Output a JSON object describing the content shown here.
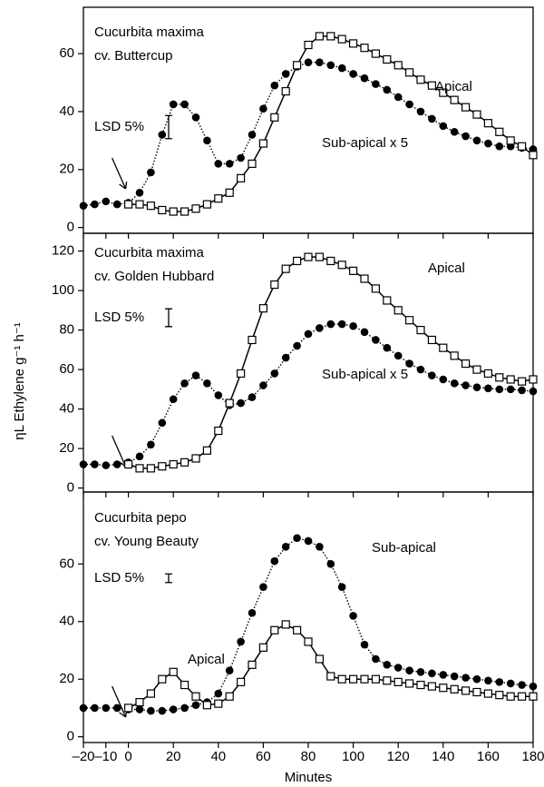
{
  "chart_data": [
    {
      "type": "line",
      "title_lines": [
        "Cucurbita maxima",
        "cv. Buttercup"
      ],
      "lsd_label": "LSD 5%",
      "lsd_value": 8,
      "xlim": [
        -20,
        180
      ],
      "ylim": [
        -2,
        76
      ],
      "yticks": [
        0,
        20,
        40,
        60
      ],
      "x": [
        -20,
        -15,
        -10,
        -5,
        0,
        5,
        10,
        15,
        20,
        25,
        30,
        35,
        40,
        45,
        50,
        55,
        60,
        65,
        70,
        75,
        80,
        85,
        90,
        95,
        100,
        105,
        110,
        115,
        120,
        125,
        130,
        135,
        140,
        145,
        150,
        155,
        160,
        165,
        170,
        175,
        180
      ],
      "series": [
        {
          "name": "Sub-apical x 5",
          "color": "#000000",
          "marker": "filled",
          "line_style": "dotted",
          "values": [
            7.5,
            8,
            9,
            8,
            8.5,
            12,
            19,
            32,
            42.5,
            42.5,
            38,
            30,
            22,
            22,
            24,
            32,
            41,
            49,
            53,
            55.5,
            57,
            57,
            56,
            55,
            53,
            51.5,
            49.5,
            47.5,
            45,
            42.5,
            40,
            37.5,
            35,
            33,
            31.5,
            30,
            29,
            28,
            28,
            27.5,
            27
          ]
        },
        {
          "name": "Apical",
          "color": "#000000",
          "marker": "open",
          "line_style": "solid",
          "values": [
            null,
            null,
            null,
            null,
            8,
            8,
            7.5,
            6,
            5.5,
            5.5,
            6.5,
            8,
            10,
            12,
            17,
            22,
            29,
            38,
            47,
            56,
            63,
            66,
            66,
            65,
            63.5,
            62,
            60,
            58,
            56,
            53.5,
            51,
            49,
            46.5,
            44,
            41.5,
            39,
            36,
            33,
            30,
            28,
            25
          ]
        }
      ]
    },
    {
      "type": "line",
      "title_lines": [
        "Cucurbita maxima",
        "cv. Golden Hubbard"
      ],
      "lsd_label": "LSD 5%",
      "lsd_value": 9,
      "y_label": "ηL Ethylene g⁻¹ h⁻¹",
      "xlim": [
        -20,
        180
      ],
      "ylim": [
        -2,
        129
      ],
      "yticks": [
        0,
        20,
        40,
        60,
        80,
        100,
        120
      ],
      "x": [
        -20,
        -15,
        -10,
        -5,
        0,
        5,
        10,
        15,
        20,
        25,
        30,
        35,
        40,
        45,
        50,
        55,
        60,
        65,
        70,
        75,
        80,
        85,
        90,
        95,
        100,
        105,
        110,
        115,
        120,
        125,
        130,
        135,
        140,
        145,
        150,
        155,
        160,
        165,
        170,
        175,
        180
      ],
      "series": [
        {
          "name": "Sub-apical x 5",
          "color": "#000000",
          "marker": "filled",
          "line_style": "dotted",
          "values": [
            12,
            12,
            11.5,
            12,
            13,
            16,
            22,
            33,
            45,
            53,
            57,
            53,
            47,
            42,
            43,
            46,
            52,
            58,
            66,
            72,
            78,
            81,
            83,
            83,
            82,
            79,
            75,
            71,
            67,
            63,
            60,
            57,
            55,
            53,
            52,
            51,
            50.5,
            50,
            50,
            49.5,
            49
          ]
        },
        {
          "name": "Apical",
          "color": "#000000",
          "marker": "open",
          "line_style": "solid",
          "values": [
            null,
            null,
            null,
            null,
            12,
            10,
            10,
            11,
            12,
            13,
            15,
            19,
            29,
            43,
            58,
            75,
            91,
            103,
            111,
            115,
            117,
            117,
            115,
            113,
            110,
            106,
            101,
            95,
            90,
            85,
            80,
            75,
            71,
            67,
            63,
            60,
            58,
            56,
            55,
            54,
            55
          ]
        }
      ]
    },
    {
      "type": "line",
      "title_lines": [
        "Cucurbita pepo",
        "cv. Young Beauty"
      ],
      "lsd_label": "LSD 5%",
      "lsd_value": 3,
      "x_label": "Minutes",
      "xlim": [
        -20,
        180
      ],
      "ylim": [
        -2,
        85
      ],
      "yticks": [
        0,
        20,
        40,
        60
      ],
      "xticks": [
        {
          "value": -20,
          "label": "–20"
        },
        {
          "value": -10,
          "label": "–10"
        },
        0,
        20,
        40,
        60,
        80,
        100,
        120,
        140,
        160,
        180
      ],
      "x": [
        -20,
        -15,
        -10,
        -5,
        0,
        5,
        10,
        15,
        20,
        25,
        30,
        35,
        40,
        45,
        50,
        55,
        60,
        65,
        70,
        75,
        80,
        85,
        90,
        95,
        100,
        105,
        110,
        115,
        120,
        125,
        130,
        135,
        140,
        145,
        150,
        155,
        160,
        165,
        170,
        175,
        180
      ],
      "series": [
        {
          "name": "Sub-apical",
          "color": "#000000",
          "marker": "filled",
          "line_style": "dotted",
          "values": [
            10,
            10,
            10,
            10,
            9.5,
            9.5,
            9,
            9,
            9.5,
            10,
            11,
            12,
            15,
            23,
            33,
            43,
            52,
            61,
            66,
            69,
            68,
            66,
            60,
            52,
            42,
            32,
            27,
            25,
            24,
            23,
            22.5,
            22,
            21.5,
            21,
            20.5,
            20,
            19.5,
            19,
            18.5,
            18,
            17.5
          ]
        },
        {
          "name": "Apical",
          "color": "#000000",
          "marker": "open",
          "line_style": "solid",
          "values": [
            null,
            null,
            null,
            null,
            10,
            12,
            15,
            20,
            22.5,
            18,
            14,
            11,
            11.5,
            14,
            19,
            25,
            31,
            37,
            39,
            37,
            33,
            27,
            21,
            20,
            20,
            20,
            20,
            19.5,
            19,
            18.5,
            18,
            17.5,
            17,
            16.5,
            16,
            15.5,
            15,
            14.5,
            14,
            14,
            14
          ]
        }
      ]
    }
  ]
}
